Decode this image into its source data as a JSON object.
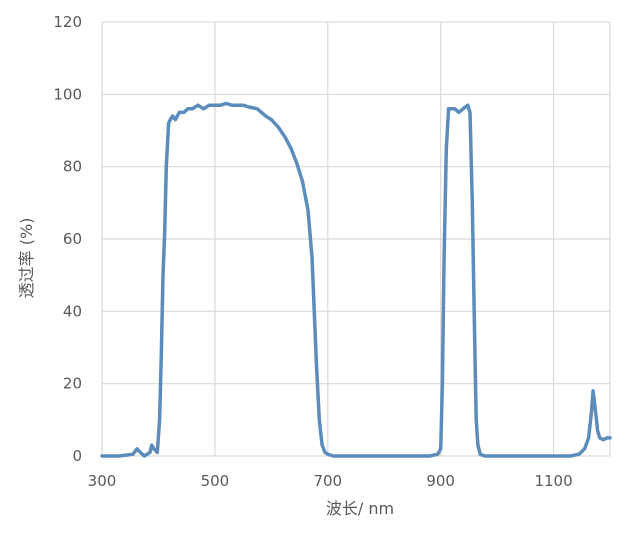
{
  "chart_data": {
    "type": "line",
    "title": "",
    "xlabel": "波长/ nm",
    "ylabel": "透过率 (%)",
    "xlim": [
      300,
      1200
    ],
    "ylim": [
      0,
      120
    ],
    "xticks": [
      300,
      500,
      700,
      900,
      1100
    ],
    "yticks": [
      0,
      20,
      40,
      60,
      80,
      100,
      120
    ],
    "grid": true,
    "legend": "none",
    "color": "#5b8cbc",
    "series": [
      {
        "x": [
          300,
          330,
          355,
          362,
          368,
          375,
          385,
          388,
          392,
          398,
          402,
          405,
          408,
          411,
          414,
          418,
          421,
          425,
          430,
          437,
          445,
          452,
          460,
          470,
          480,
          490,
          500,
          510,
          520,
          530,
          540,
          550,
          560,
          575,
          590,
          600,
          612,
          625,
          635,
          645,
          655,
          665,
          672,
          680,
          685,
          690,
          695,
          700,
          710,
          730,
          760,
          800,
          850,
          880,
          895,
          900,
          903,
          906,
          910,
          914,
          918,
          925,
          932,
          940,
          948,
          952,
          956,
          960,
          963,
          966,
          970,
          978,
          990,
          1010,
          1050,
          1100,
          1130,
          1145,
          1155,
          1162,
          1167,
          1170,
          1173,
          1176,
          1178,
          1182,
          1188,
          1195,
          1200
        ],
        "values": [
          0,
          0,
          0.5,
          2,
          1,
          0,
          1,
          3,
          2,
          1,
          10,
          28,
          50,
          62,
          80,
          92,
          93,
          94,
          93,
          95,
          95,
          96,
          96,
          97,
          96,
          97,
          97,
          97,
          97.5,
          97,
          97,
          97,
          96.5,
          96,
          94,
          93,
          91,
          88,
          85,
          81,
          76,
          68,
          55,
          25,
          10,
          3,
          1,
          0.5,
          0,
          0,
          0,
          0,
          0,
          0,
          0.5,
          2,
          20,
          55,
          85,
          96,
          96,
          96,
          95,
          96,
          97,
          95,
          70,
          35,
          10,
          3,
          0.5,
          0,
          0,
          0,
          0,
          0,
          0,
          0.5,
          2,
          5,
          12,
          18,
          14,
          10,
          7,
          5,
          4.5,
          5,
          5
        ]
      }
    ]
  }
}
